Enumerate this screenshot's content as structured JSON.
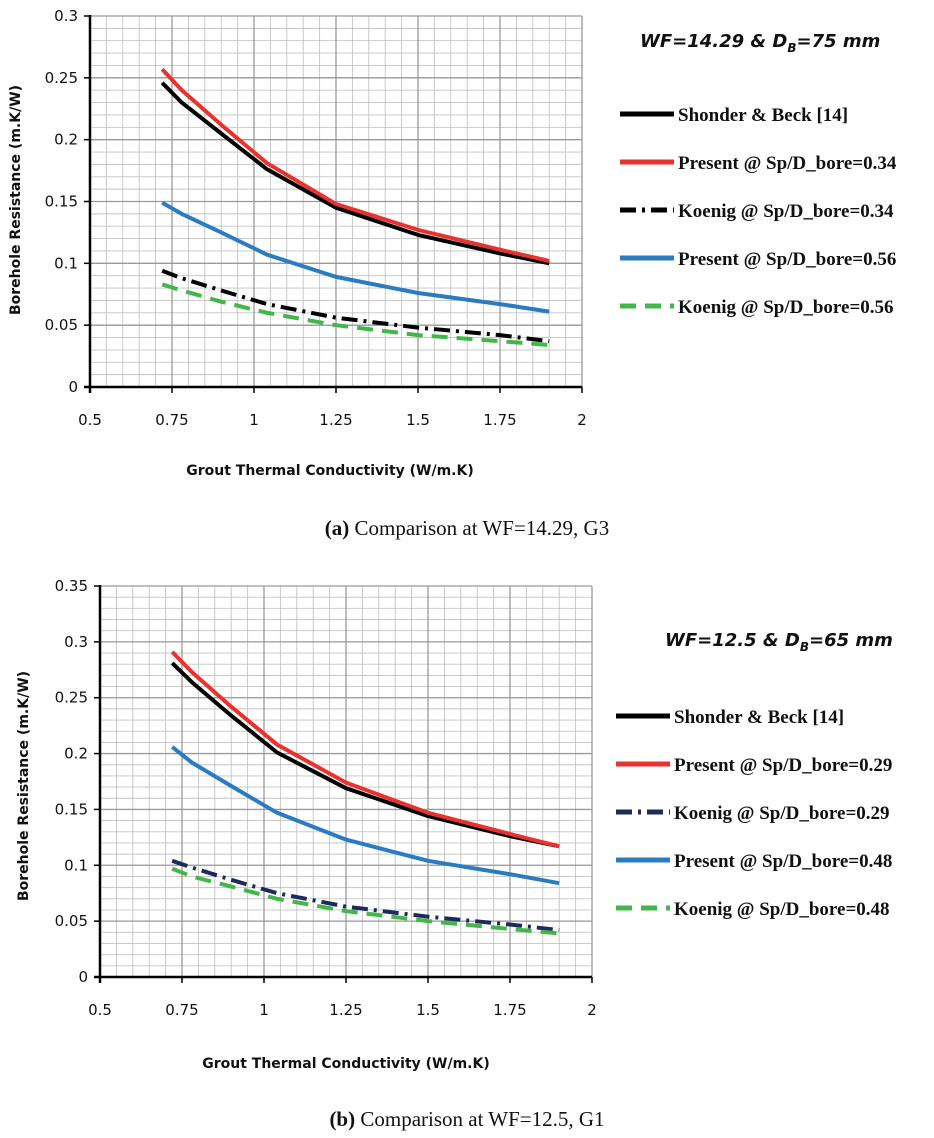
{
  "chart_data": [
    {
      "type": "line",
      "title_main": "WF=14.29 & D",
      "title_sub": "B",
      "title_rest": "=75 mm",
      "xlabel": "Grout Thermal Conductivity (W/m.K)",
      "ylabel": "Borehole Resistance (m.K/W)",
      "xlim": [
        0.5,
        2
      ],
      "ylim": [
        0,
        0.3
      ],
      "xticks": [
        "0.5",
        "0.75",
        "1",
        "1.25",
        "1.5",
        "1.75",
        "2"
      ],
      "yticks": [
        "0",
        "0.05",
        "0.1",
        "0.15",
        "0.2",
        "0.25",
        "0.3"
      ],
      "x": [
        0.72,
        0.78,
        0.9,
        1.04,
        1.25,
        1.5,
        1.75,
        1.9
      ],
      "series": [
        {
          "name": "Shonder & Beck [14]",
          "color": "#000000",
          "style": "solid",
          "values": [
            0.246,
            0.23,
            0.205,
            0.176,
            0.145,
            0.123,
            0.108,
            0.1
          ]
        },
        {
          "name": "Present @ Sp/D_bore=0.34",
          "color": "#e8322d",
          "style": "solid",
          "values": [
            0.257,
            0.24,
            0.212,
            0.181,
            0.148,
            0.127,
            0.111,
            0.102
          ]
        },
        {
          "name": "Koenig @ Sp/D_bore=0.34",
          "color": "#000000",
          "style": "dashdot",
          "values": [
            0.094,
            0.088,
            0.078,
            0.067,
            0.056,
            0.048,
            0.042,
            0.037
          ]
        },
        {
          "name": "Present @ Sp/D_bore=0.56",
          "color": "#2b7bc2",
          "style": "solid",
          "values": [
            0.149,
            0.14,
            0.125,
            0.107,
            0.089,
            0.076,
            0.067,
            0.061
          ]
        },
        {
          "name": "Koenig @ Sp/D_bore=0.56",
          "color": "#43b649",
          "style": "dashed",
          "values": [
            0.083,
            0.078,
            0.069,
            0.06,
            0.05,
            0.042,
            0.037,
            0.034
          ]
        }
      ],
      "caption_bold": "(a)",
      "caption_text": " Comparison at  WF=14.29, G3"
    },
    {
      "type": "line",
      "title_main": "WF=12.5 & D",
      "title_sub": "B",
      "title_rest": "=65 mm",
      "xlabel": "Grout Thermal Conductivity (W/m.K)",
      "ylabel": "Borehole Resistance (m.K/W)",
      "xlim": [
        0.5,
        2
      ],
      "ylim": [
        0,
        0.35
      ],
      "xticks": [
        "0.5",
        "0.75",
        "1",
        "1.25",
        "1.5",
        "1.75",
        "2"
      ],
      "yticks": [
        "0",
        "0.05",
        "0.1",
        "0.15",
        "0.2",
        "0.25",
        "0.3",
        "0.35"
      ],
      "x": [
        0.72,
        0.78,
        0.9,
        1.04,
        1.25,
        1.5,
        1.75,
        1.9
      ],
      "series": [
        {
          "name": "Shonder & Beck [14]",
          "color": "#000000",
          "style": "solid",
          "values": [
            0.281,
            0.264,
            0.234,
            0.201,
            0.169,
            0.144,
            0.126,
            0.117
          ]
        },
        {
          "name": "Present @ Sp/D_bore=0.29",
          "color": "#e8322d",
          "style": "solid",
          "values": [
            0.291,
            0.273,
            0.242,
            0.208,
            0.174,
            0.147,
            0.128,
            0.117
          ]
        },
        {
          "name": "Koenig @ Sp/D_bore=0.29",
          "color": "#1f2a5c",
          "style": "dashdot",
          "values": [
            0.104,
            0.098,
            0.087,
            0.075,
            0.063,
            0.054,
            0.047,
            0.042
          ]
        },
        {
          "name": "Present @ Sp/D_bore=0.48",
          "color": "#2b7bc2",
          "style": "solid",
          "values": [
            0.206,
            0.192,
            0.171,
            0.147,
            0.123,
            0.104,
            0.092,
            0.084
          ]
        },
        {
          "name": "Koenig @ Sp/D_bore=0.48",
          "color": "#43b649",
          "style": "dashed",
          "values": [
            0.097,
            0.09,
            0.081,
            0.07,
            0.059,
            0.05,
            0.043,
            0.039
          ]
        }
      ],
      "caption_bold": "(b)",
      "caption_text": " Comparison at WF=12.5, G1"
    }
  ]
}
